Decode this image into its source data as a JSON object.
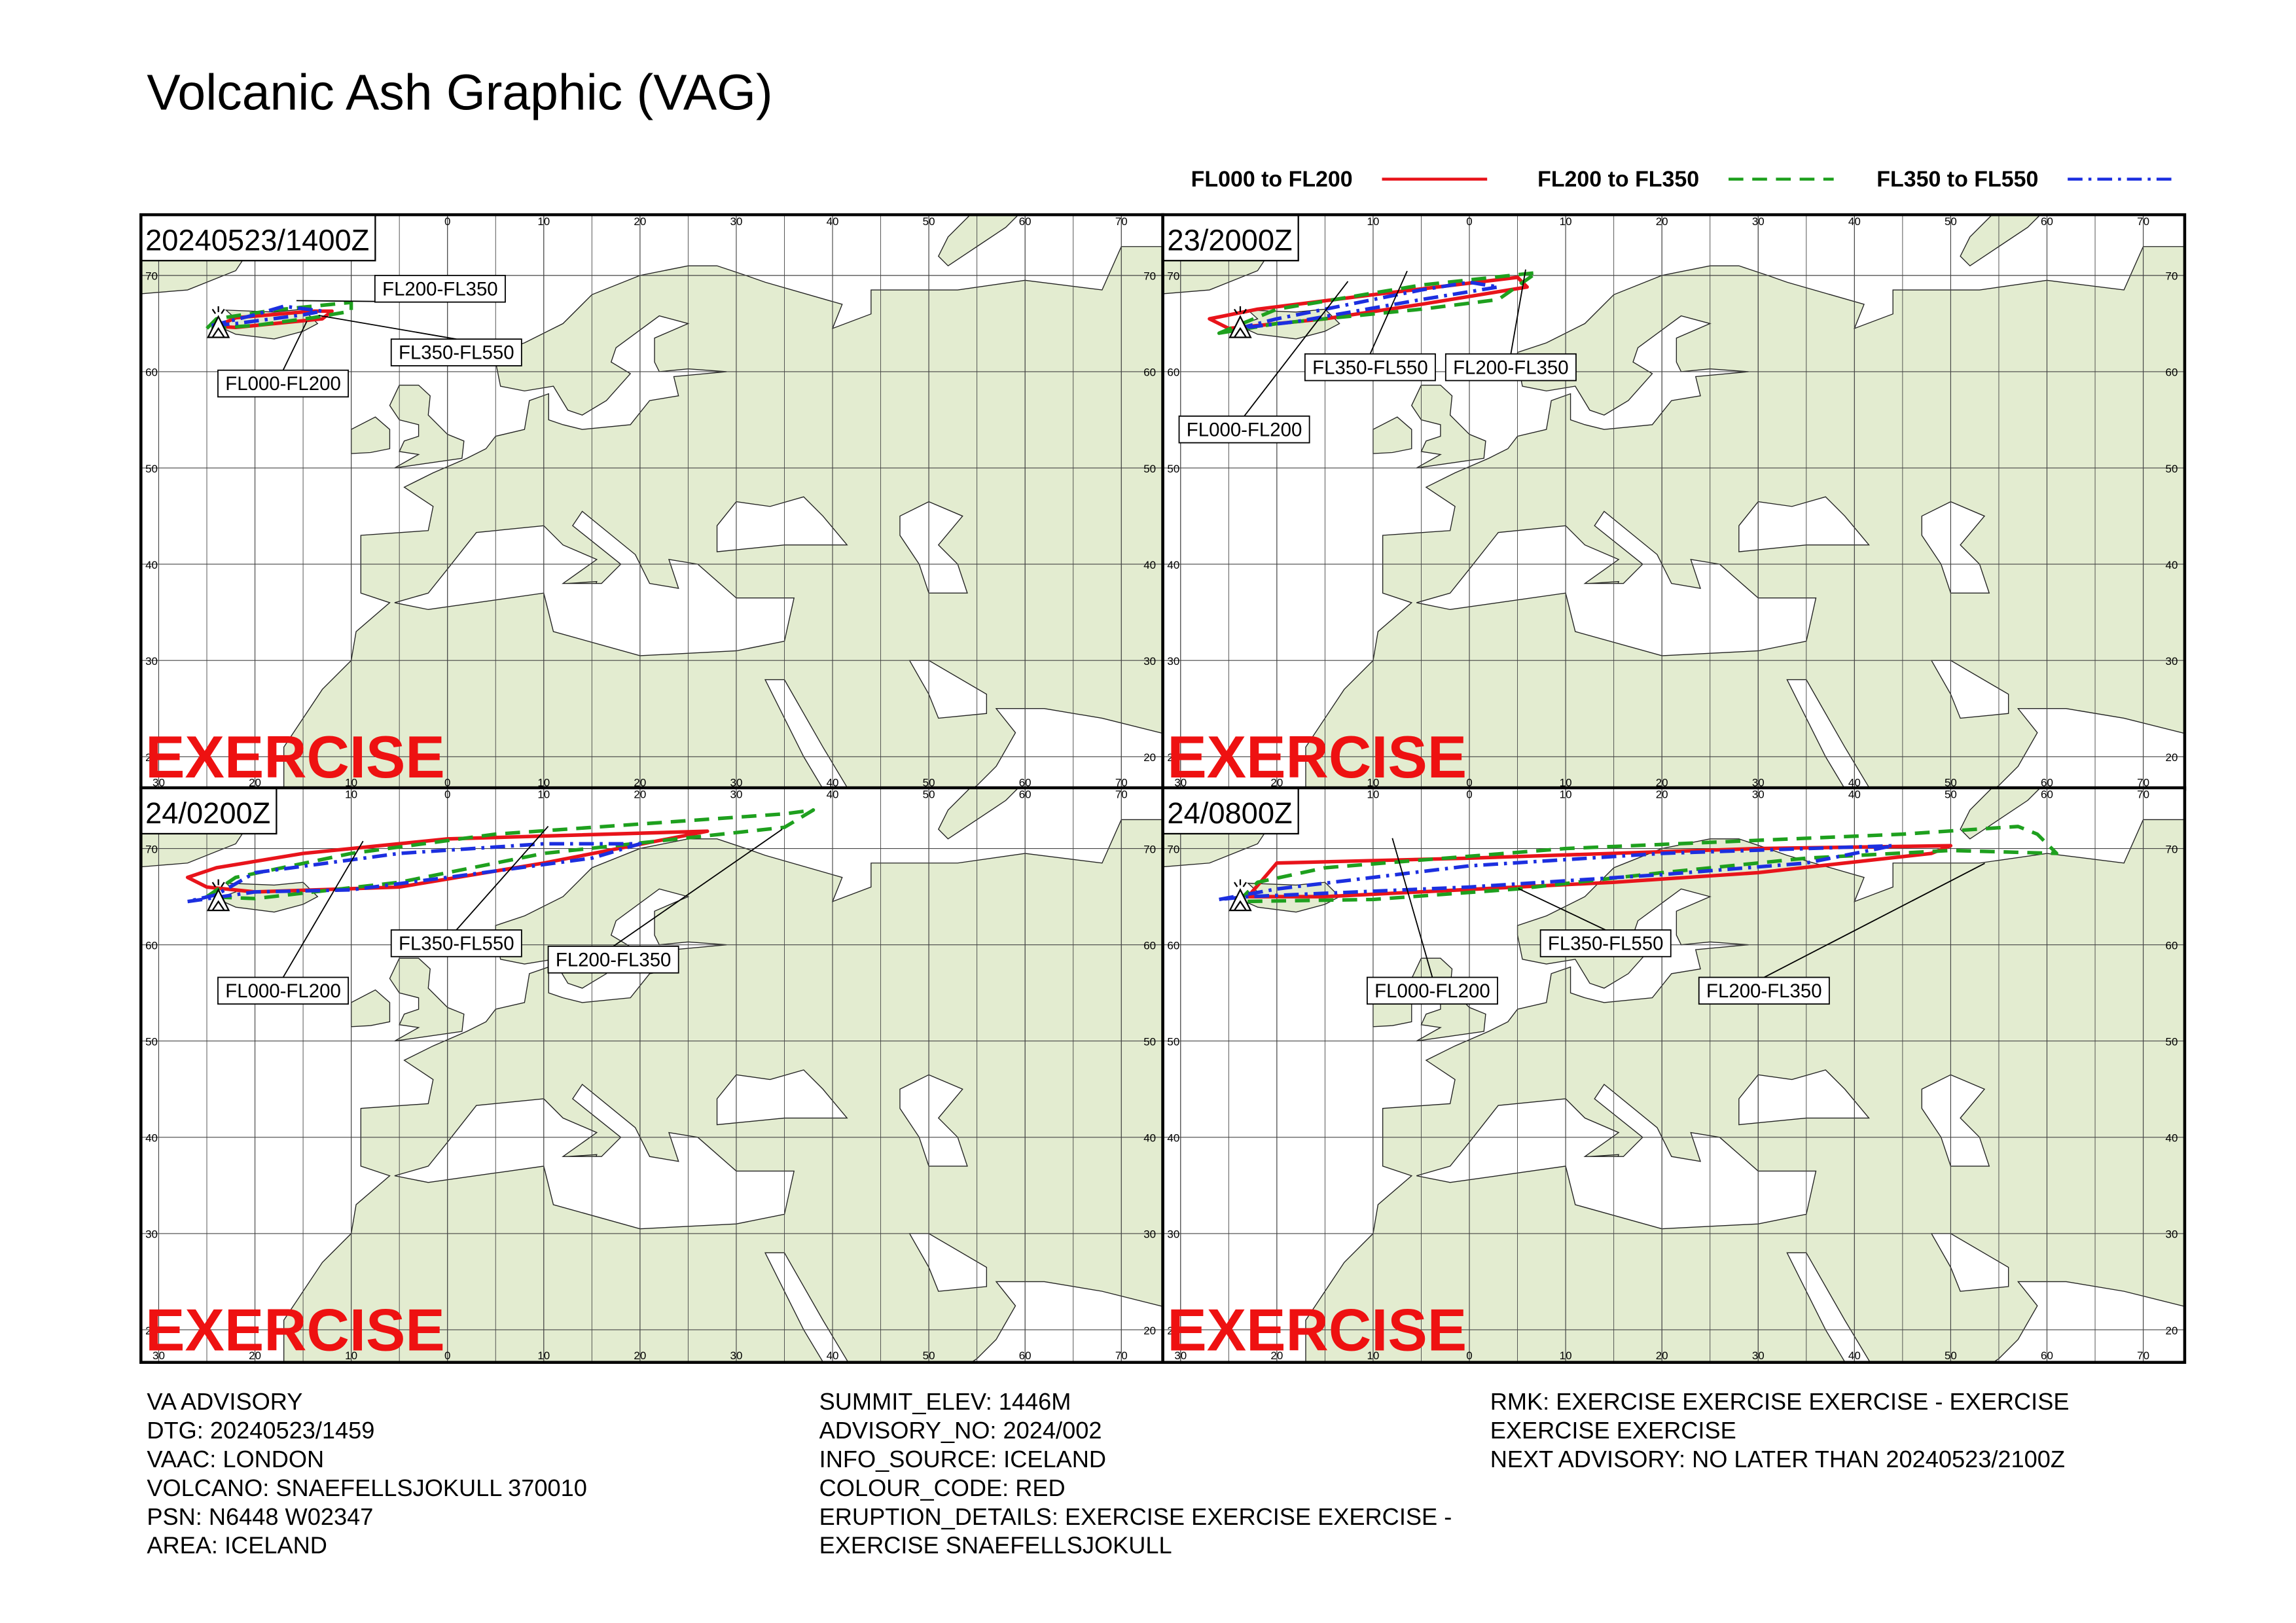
{
  "title": "Volcanic Ash Graphic (VAG)",
  "legend": [
    {
      "label": "FL000 to FL200",
      "color": "#e8141b",
      "dash": "solid"
    },
    {
      "label": "FL200 to FL350",
      "color": "#1ea01e",
      "dash": "dashed"
    },
    {
      "label": "FL350 to FL550",
      "color": "#1c2fe0",
      "dash": "dashdot"
    }
  ],
  "grid": {
    "lon_ticks": [
      {
        "value": -30,
        "label": "30"
      },
      {
        "value": -20,
        "label": "20"
      },
      {
        "value": -10,
        "label": "10"
      },
      {
        "value": 0,
        "label": "0"
      },
      {
        "value": 10,
        "label": "10"
      },
      {
        "value": 20,
        "label": "20"
      },
      {
        "value": 30,
        "label": "30"
      },
      {
        "value": 40,
        "label": "40"
      },
      {
        "value": 50,
        "label": "50"
      },
      {
        "value": 60,
        "label": "60"
      },
      {
        "value": 70,
        "label": "70"
      }
    ],
    "lat_ticks": [
      70,
      60,
      50,
      40,
      30,
      20
    ]
  },
  "panels": [
    {
      "time": "20240523/1400Z",
      "watermark": "EXERCISE",
      "labels": [
        "FL200-FL350",
        "FL350-FL550",
        "FL000-FL200"
      ]
    },
    {
      "time": "23/2000Z",
      "watermark": "EXERCISE",
      "labels": [
        "FL350-FL550",
        "FL200-FL350",
        "FL000-FL200"
      ]
    },
    {
      "time": "24/0200Z",
      "watermark": "EXERCISE",
      "labels": [
        "FL350-FL550",
        "FL200-FL350",
        "FL000-FL200"
      ]
    },
    {
      "time": "24/0800Z",
      "watermark": "EXERCISE",
      "labels": [
        "FL350-FL550",
        "FL200-FL350",
        "FL000-FL200"
      ]
    }
  ],
  "advisory": {
    "columns": [
      [
        "VA ADVISORY",
        "DTG: 20240523/1459",
        "VAAC: LONDON",
        "VOLCANO: SNAEFELLSJOKULL 370010",
        "PSN: N6448 W02347",
        "AREA: ICELAND"
      ],
      [
        "SUMMIT_ELEV: 1446M",
        "ADVISORY_NO: 2024/002",
        "INFO_SOURCE: ICELAND",
        "COLOUR_CODE: RED",
        "ERUPTION_DETAILS: EXERCISE EXERCISE EXERCISE -",
        "EXERCISE SNAEFELLSJOKULL"
      ],
      [
        "RMK: EXERCISE EXERCISE EXERCISE - EXERCISE",
        "EXERCISE EXERCISE",
        "NEXT ADVISORY: NO LATER THAN 20240523/2100Z"
      ]
    ]
  }
}
